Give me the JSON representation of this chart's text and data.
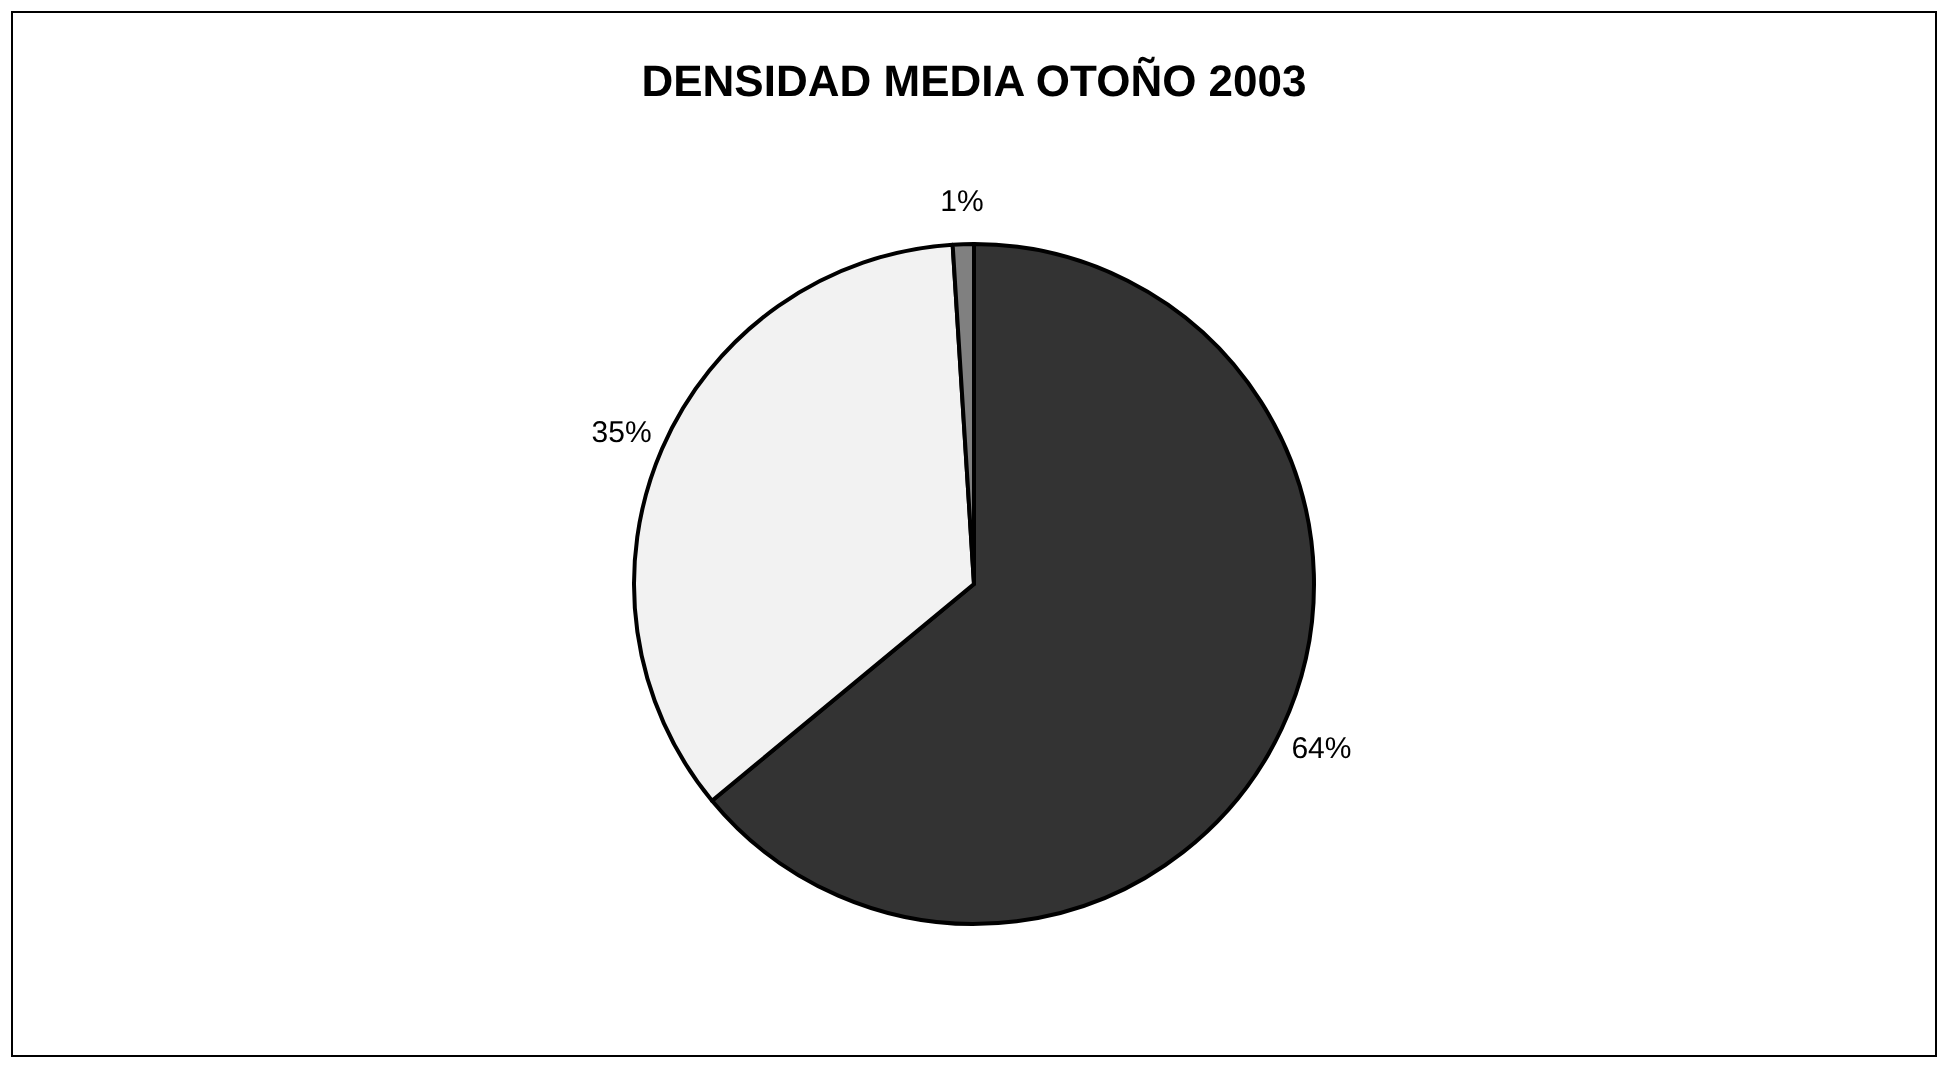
{
  "chart_data": {
    "type": "pie",
    "title": "DENSIDAD MEDIA OTOÑO 2003",
    "categories": [
      null,
      null,
      null
    ],
    "values": [
      64,
      35,
      1
    ],
    "colors": [
      "#333333",
      "#f2f2f2",
      "#808080"
    ],
    "value_labels": [
      "64%",
      "35%",
      "1%"
    ]
  }
}
